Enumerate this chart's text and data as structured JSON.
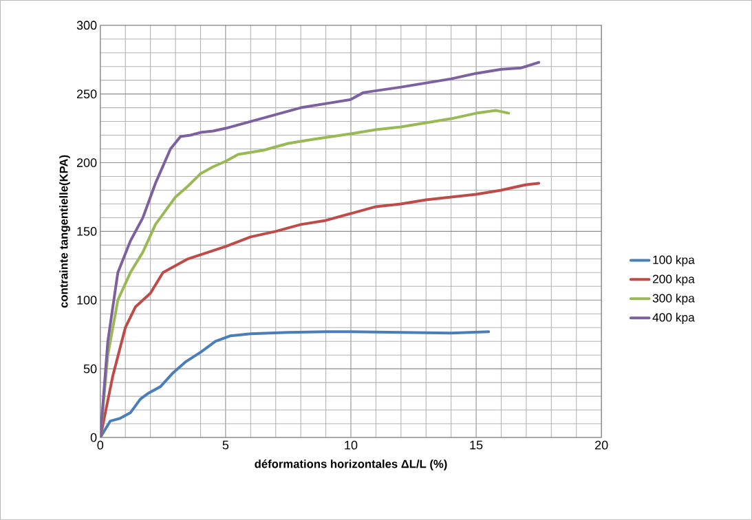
{
  "chart_data": {
    "type": "line",
    "xlabel": "déformations horizontales ΔL/L (%)",
    "ylabel": "contrainte tangentielle(KPA)",
    "xlim": [
      0,
      20
    ],
    "ylim": [
      0,
      300
    ],
    "xticks": [
      0,
      5,
      10,
      15,
      20
    ],
    "yticks": [
      0,
      50,
      100,
      150,
      200,
      250,
      300
    ],
    "grid": true,
    "legend": "right",
    "marker": "none",
    "line_style": "solid",
    "series": [
      {
        "name": "100 kpa",
        "color": "#4a7ebb",
        "x": [
          0,
          0.4,
          0.8,
          1.2,
          1.6,
          1.9,
          2.4,
          2.9,
          3.4,
          4,
          4.6,
          5.2,
          6,
          7.5,
          9,
          10,
          12,
          14,
          15.5
        ],
        "values": [
          0,
          12,
          14,
          18,
          28,
          32,
          37,
          47,
          55,
          62,
          70,
          74,
          75.5,
          76.5,
          77,
          77,
          76.5,
          76,
          77
        ]
      },
      {
        "name": "200 kpa",
        "color": "#be4b48",
        "x": [
          0,
          0.5,
          1,
          1.4,
          2,
          2.5,
          3,
          3.5,
          4,
          4.5,
          5,
          6,
          7,
          8,
          9,
          10,
          11,
          12,
          13,
          14,
          15,
          16,
          17,
          17.5
        ],
        "values": [
          0,
          45,
          80,
          95,
          105,
          120,
          125,
          130,
          133,
          136,
          139,
          146,
          150,
          155,
          158,
          163,
          168,
          170,
          173,
          175,
          177,
          180,
          184,
          185
        ]
      },
      {
        "name": "300 kpa",
        "color": "#98b954",
        "x": [
          0,
          0.3,
          0.7,
          1.2,
          1.7,
          2.2,
          3,
          3.5,
          4,
          4.5,
          5,
          5.5,
          6.5,
          7.5,
          8.5,
          10,
          11,
          12,
          13,
          14,
          14.5,
          15,
          15.8,
          16.3
        ],
        "values": [
          0,
          60,
          100,
          120,
          135,
          155,
          175,
          183,
          192,
          197,
          201,
          206,
          209,
          214,
          217,
          221,
          224,
          226,
          229,
          232,
          234,
          236,
          238,
          236
        ]
      },
      {
        "name": "400 kpa",
        "color": "#7d60a0",
        "x": [
          0,
          0.3,
          0.7,
          1.2,
          1.7,
          2.2,
          2.8,
          3.2,
          3.6,
          4,
          4.5,
          5,
          6,
          7,
          8,
          9,
          10,
          10.5,
          12,
          13,
          14,
          15,
          16,
          16.8,
          17.5
        ],
        "values": [
          0,
          70,
          120,
          143,
          160,
          185,
          210,
          219,
          220,
          222,
          223,
          225,
          230,
          235,
          240,
          243,
          246,
          251,
          255,
          258,
          261,
          265,
          268,
          269,
          273
        ]
      }
    ]
  }
}
